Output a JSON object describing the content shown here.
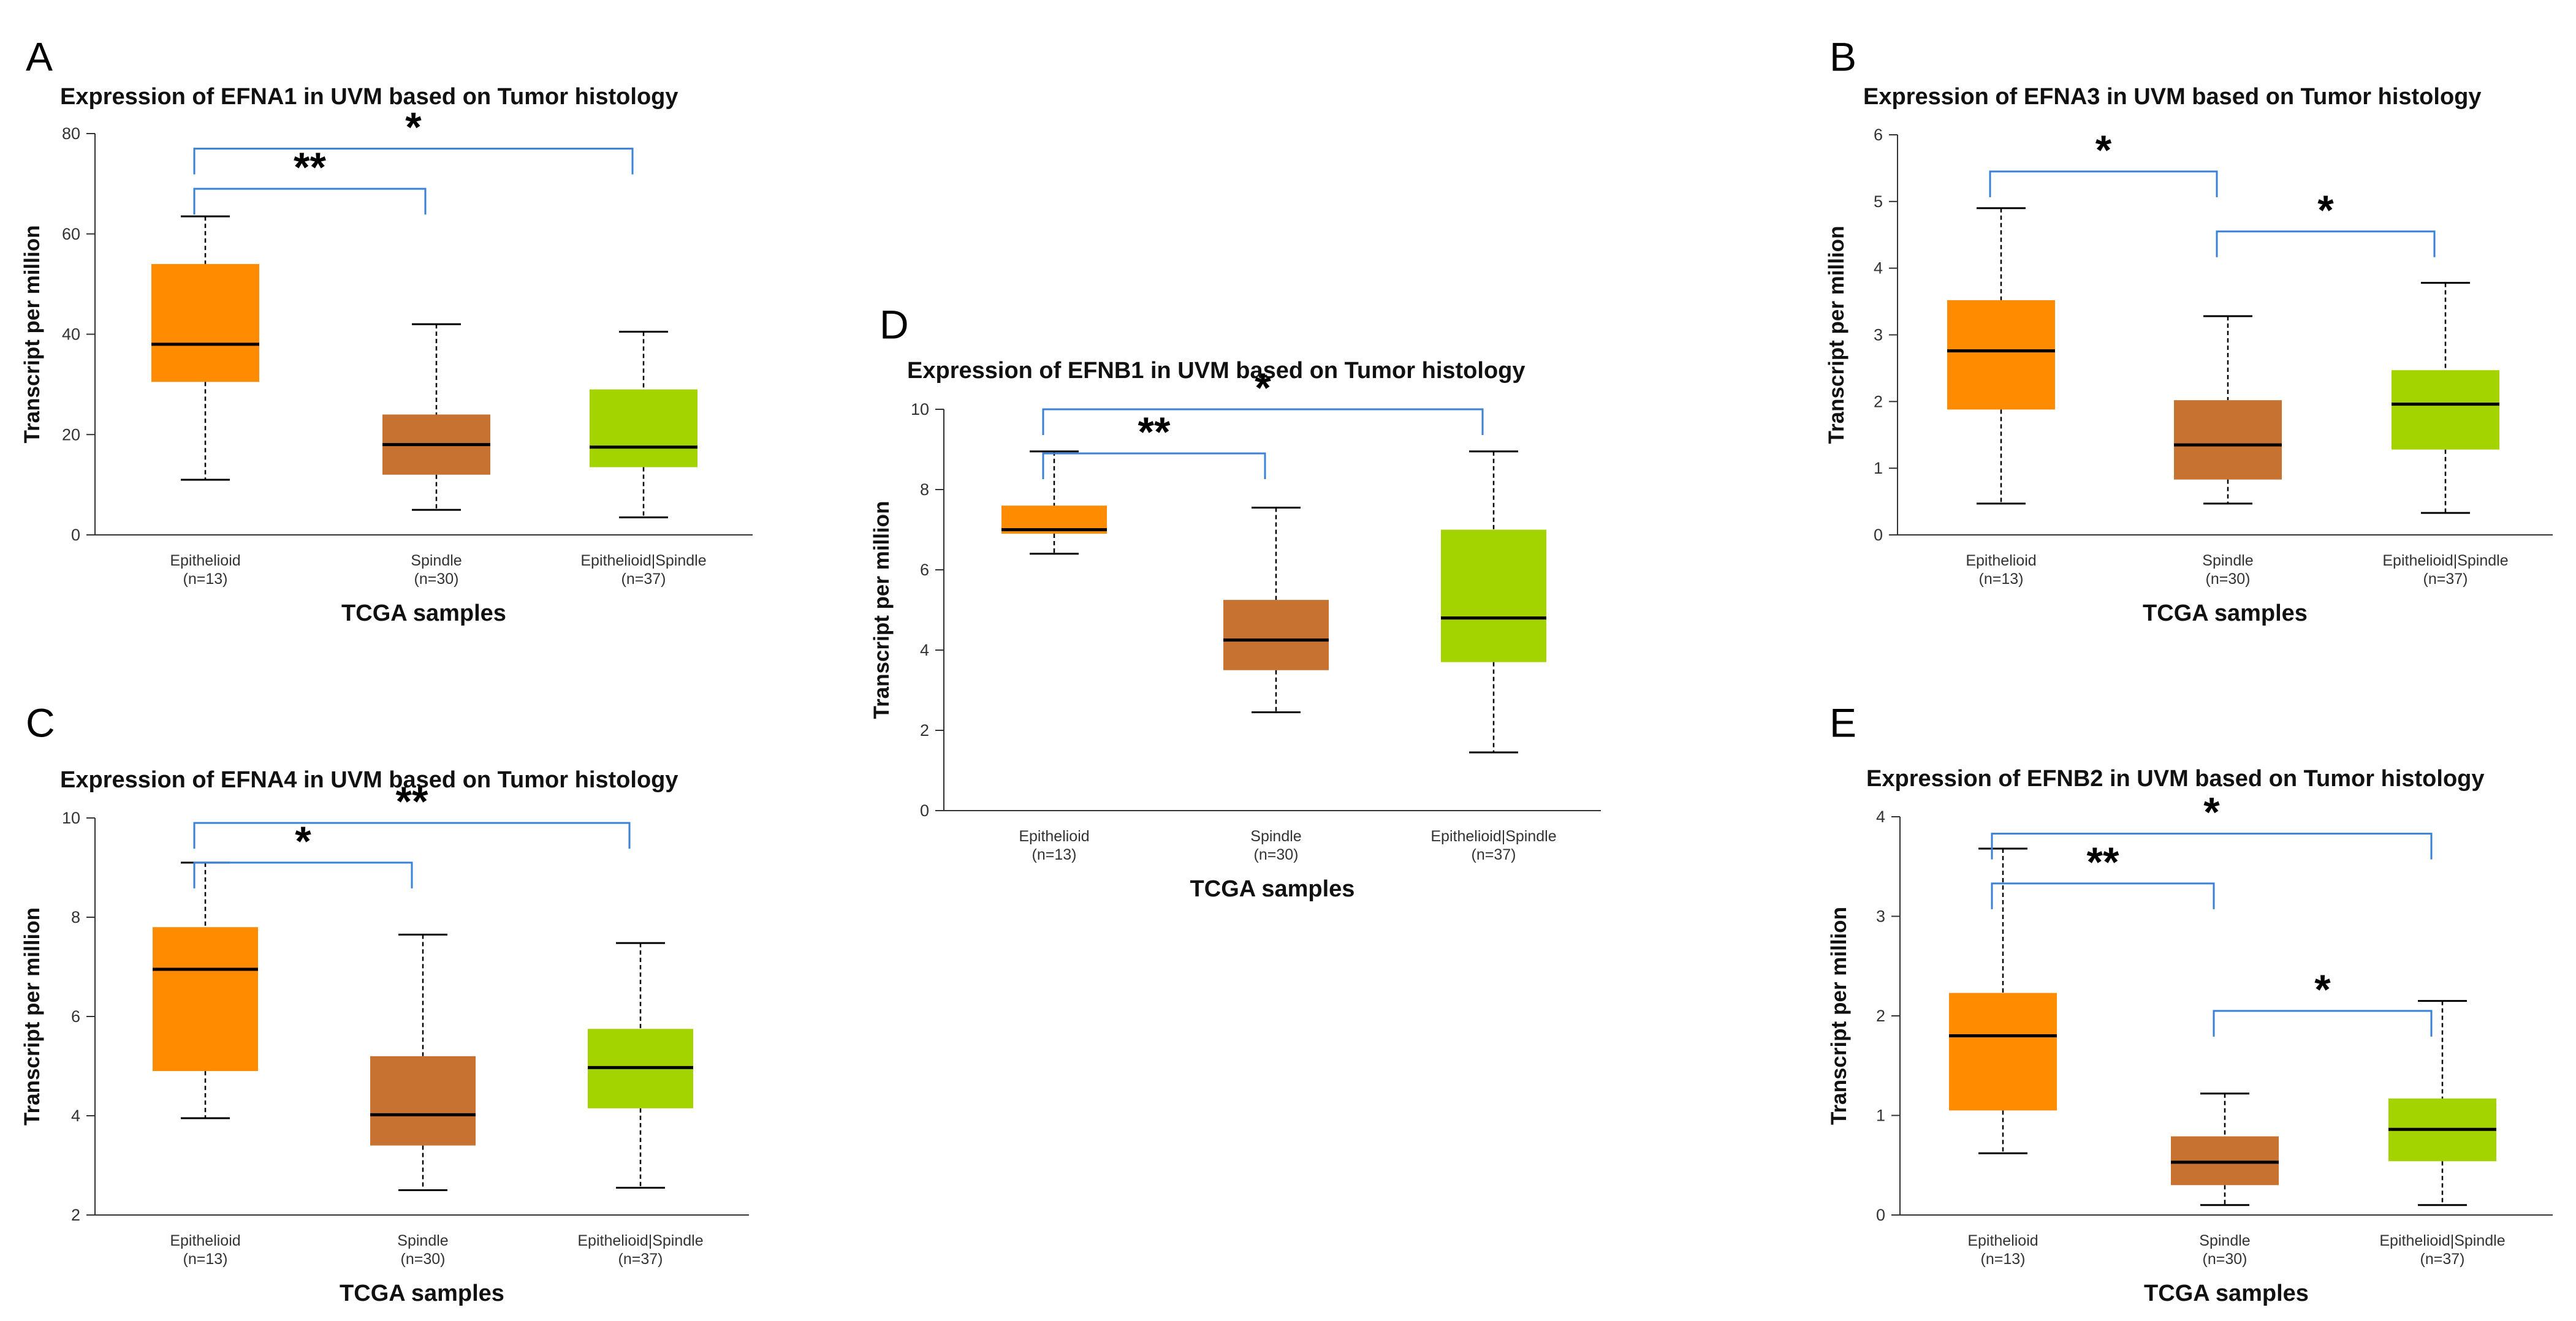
{
  "chart_data": [
    {
      "panel_label": "A",
      "type": "box",
      "title": "Expression of EFNA1 in UVM based on Tumor histology",
      "xlabel": "TCGA samples",
      "ylabel": "Transcript per million",
      "ylim": [
        0,
        80
      ],
      "yticks": [
        "0",
        "20",
        "40",
        "60",
        "80"
      ],
      "categories": [
        {
          "name": "Epithelioid",
          "n": "(n=13)",
          "color": "#ff8c00",
          "min": 11,
          "q1": 30.5,
          "median": 38,
          "q3": 54,
          "max": 63.5
        },
        {
          "name": "Spindle",
          "n": "(n=30)",
          "color": "#c87232",
          "min": 5,
          "q1": 12,
          "median": 18,
          "q3": 24,
          "max": 42
        },
        {
          "name": "Epithelioid|Spindle",
          "n": "(n=37)",
          "color": "#a4d400",
          "min": 3.5,
          "q1": 13.5,
          "median": 17.5,
          "q3": 29,
          "max": 40.5
        }
      ],
      "significance": [
        {
          "from": 0,
          "to": 1,
          "label": "**",
          "level": 69
        },
        {
          "from": 0,
          "to": 2,
          "label": "*",
          "level": 77
        }
      ]
    },
    {
      "panel_label": "B",
      "type": "box",
      "title": "Expression of EFNA3 in UVM based on Tumor histology",
      "xlabel": "TCGA samples",
      "ylabel": "Transcript per million",
      "ylim": [
        0,
        6
      ],
      "yticks": [
        "0",
        "1",
        "2",
        "3",
        "4",
        "5",
        "6"
      ],
      "categories": [
        {
          "name": "Epithelioid",
          "n": "(n=13)",
          "color": "#ff8c00",
          "min": 0.47,
          "q1": 1.88,
          "median": 2.76,
          "q3": 3.52,
          "max": 4.9
        },
        {
          "name": "Spindle",
          "n": "(n=30)",
          "color": "#c87232",
          "min": 0.47,
          "q1": 0.83,
          "median": 1.35,
          "q3": 2.02,
          "max": 3.28
        },
        {
          "name": "Epithelioid|Spindle",
          "n": "(n=37)",
          "color": "#a4d400",
          "min": 0.33,
          "q1": 1.28,
          "median": 1.96,
          "q3": 2.47,
          "max": 3.78
        }
      ],
      "significance": [
        {
          "from": 0,
          "to": 1,
          "label": "*",
          "level": 5.45
        },
        {
          "from": 1,
          "to": 2,
          "label": "*",
          "level": 4.55
        }
      ]
    },
    {
      "panel_label": "C",
      "type": "box",
      "title": "Expression of EFNA4 in UVM based on Tumor histology",
      "xlabel": "TCGA samples",
      "ylabel": "Transcript per million",
      "ylim": [
        2,
        10
      ],
      "yticks": [
        "2",
        "4",
        "6",
        "8",
        "10"
      ],
      "categories": [
        {
          "name": "Epithelioid",
          "n": "(n=13)",
          "color": "#ff8c00",
          "min": 3.95,
          "q1": 4.9,
          "median": 6.95,
          "q3": 7.8,
          "max": 9.1
        },
        {
          "name": "Spindle",
          "n": "(n=30)",
          "color": "#c87232",
          "min": 2.5,
          "q1": 3.4,
          "median": 4.02,
          "q3": 5.2,
          "max": 7.65
        },
        {
          "name": "Epithelioid|Spindle",
          "n": "(n=37)",
          "color": "#a4d400",
          "min": 2.55,
          "q1": 4.15,
          "median": 4.97,
          "q3": 5.75,
          "max": 7.48
        }
      ],
      "significance": [
        {
          "from": 0,
          "to": 1,
          "label": "*",
          "level": 9.1
        },
        {
          "from": 0,
          "to": 2,
          "label": "**",
          "level": 9.9
        }
      ]
    },
    {
      "panel_label": "D",
      "type": "box",
      "title": "Expression of EFNB1 in UVM based on Tumor histology",
      "xlabel": "TCGA samples",
      "ylabel": "Transcript per million",
      "ylim": [
        0,
        10
      ],
      "yticks": [
        "0",
        "2",
        "4",
        "6",
        "8",
        "10"
      ],
      "categories": [
        {
          "name": "Epithelioid",
          "n": "(n=13)",
          "color": "#ff8c00",
          "min": 6.4,
          "q1": 6.9,
          "median": 7,
          "q3": 7.6,
          "max": 8.95
        },
        {
          "name": "Spindle",
          "n": "(n=30)",
          "color": "#c87232",
          "min": 2.45,
          "q1": 3.5,
          "median": 4.25,
          "q3": 5.25,
          "max": 7.55
        },
        {
          "name": "Epithelioid|Spindle",
          "n": "(n=37)",
          "color": "#a4d400",
          "min": 1.45,
          "q1": 3.7,
          "median": 4.8,
          "q3": 7,
          "max": 8.95
        }
      ],
      "significance": [
        {
          "from": 0,
          "to": 1,
          "label": "**",
          "level": 8.9
        },
        {
          "from": 0,
          "to": 2,
          "label": "*",
          "level": 10
        }
      ]
    },
    {
      "panel_label": "E",
      "type": "box",
      "title": "Expression of EFNB2 in UVM based on Tumor histology",
      "xlabel": "TCGA samples",
      "ylabel": "Transcript per million",
      "ylim": [
        0,
        4
      ],
      "yticks": [
        "0",
        "1",
        "2",
        "3",
        "4"
      ],
      "categories": [
        {
          "name": "Epithelioid",
          "n": "(n=13)",
          "color": "#ff8c00",
          "min": 0.62,
          "q1": 1.05,
          "median": 1.8,
          "q3": 2.23,
          "max": 3.68
        },
        {
          "name": "Spindle",
          "n": "(n=30)",
          "color": "#c87232",
          "min": 0.1,
          "q1": 0.3,
          "median": 0.53,
          "q3": 0.79,
          "max": 1.22
        },
        {
          "name": "Epithelioid|Spindle",
          "n": "(n=37)",
          "color": "#a4d400",
          "min": 0.1,
          "q1": 0.54,
          "median": 0.86,
          "q3": 1.17,
          "max": 2.15
        }
      ],
      "significance": [
        {
          "from": 0,
          "to": 1,
          "label": "**",
          "level": 3.33
        },
        {
          "from": 0,
          "to": 2,
          "label": "*",
          "level": 3.83
        },
        {
          "from": 1,
          "to": 2,
          "label": "*",
          "level": 2.05
        }
      ]
    }
  ]
}
